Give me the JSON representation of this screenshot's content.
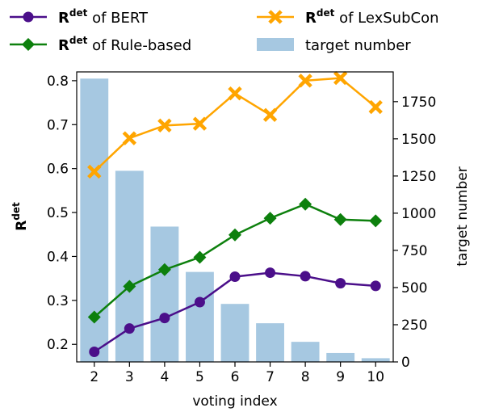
{
  "chart_data": {
    "type": "bar+line",
    "xlabel": "voting index",
    "ylabel_left": "R",
    "ylabel_left_sup": "det",
    "ylabel_right": "target number",
    "categories": [
      2,
      3,
      4,
      5,
      6,
      7,
      8,
      9,
      10
    ],
    "ylim_left": [
      0.16,
      0.82
    ],
    "yticks_left": [
      "0.2",
      "0.3",
      "0.4",
      "0.5",
      "0.6",
      "0.7",
      "0.8"
    ],
    "ylim_right": [
      0,
      1950
    ],
    "yticks_right": [
      "0",
      "250",
      "500",
      "750",
      "1000",
      "1250",
      "1500",
      "1750"
    ],
    "bars": {
      "name": "target number",
      "color": "#a6c8e1",
      "values": [
        1905,
        1285,
        910,
        605,
        390,
        260,
        135,
        60,
        25
      ]
    },
    "series": [
      {
        "name_bold": "R",
        "name_sup": "det",
        "name_rest": " of BERT",
        "color": "#4b0f8a",
        "marker": "circle",
        "values": [
          0.183,
          0.236,
          0.26,
          0.296,
          0.354,
          0.363,
          0.355,
          0.339,
          0.333
        ]
      },
      {
        "name_bold": "R",
        "name_sup": "det",
        "name_rest": " of Rule-based",
        "color": "#0d800d",
        "marker": "diamond",
        "values": [
          0.262,
          0.332,
          0.37,
          0.398,
          0.449,
          0.487,
          0.519,
          0.484,
          0.481
        ]
      },
      {
        "name_bold": "R",
        "name_sup": "det",
        "name_rest": " of LexSubCon",
        "color": "#ffa500",
        "marker": "x",
        "values": [
          0.593,
          0.669,
          0.698,
          0.702,
          0.771,
          0.722,
          0.8,
          0.806,
          0.74
        ]
      }
    ],
    "legend_position": "top, two columns",
    "grid": false
  }
}
